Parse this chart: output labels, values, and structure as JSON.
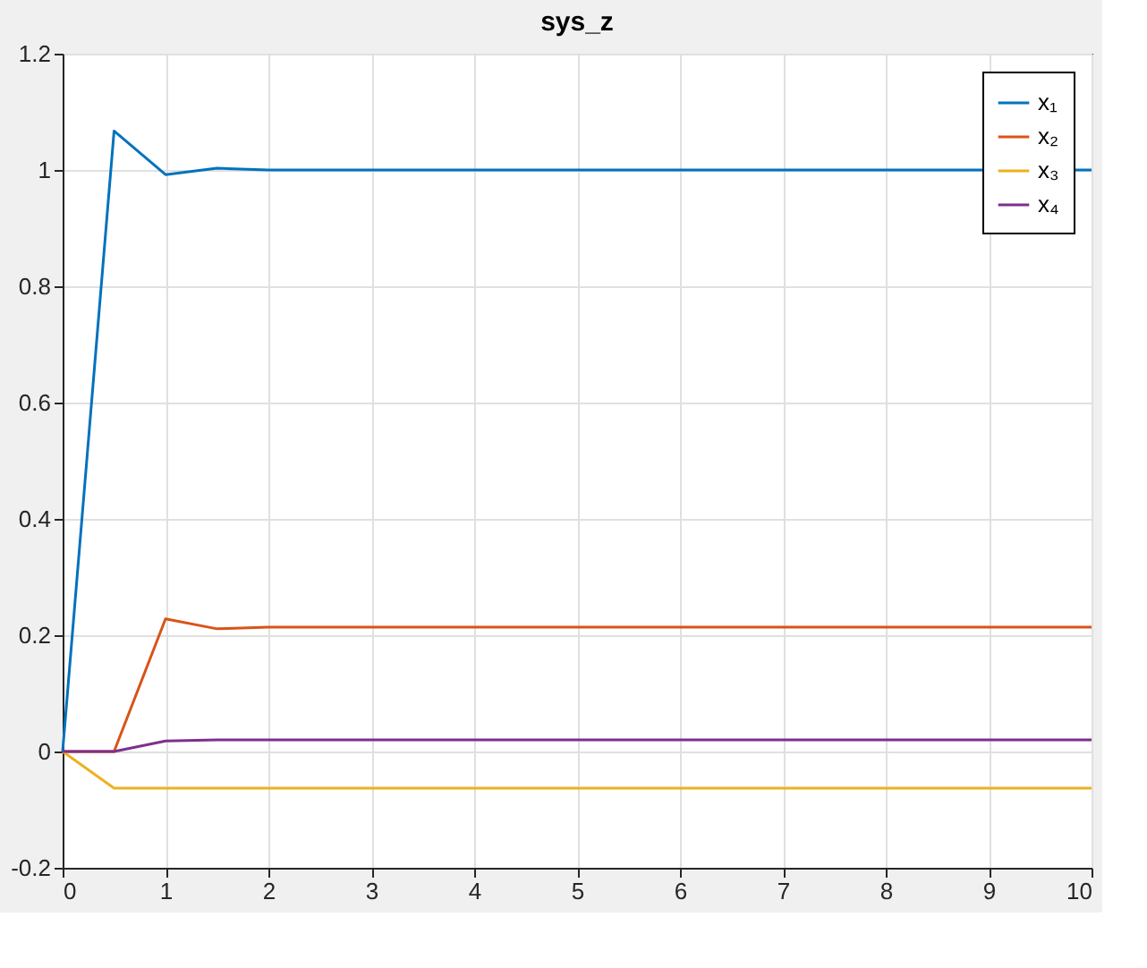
{
  "chart_data": {
    "type": "line",
    "title": "sys_z",
    "x": [
      0,
      0.5,
      1,
      1.5,
      2,
      10
    ],
    "series": [
      {
        "name": "x₁",
        "color": "#0072bd",
        "values": [
          0,
          1.067,
          0.992,
          1.003,
          1.0,
          1.0
        ]
      },
      {
        "name": "x₂",
        "color": "#d95319",
        "values": [
          0,
          0,
          0.228,
          0.211,
          0.214,
          0.214
        ]
      },
      {
        "name": "x₃",
        "color": "#edb120",
        "values": [
          0,
          -0.063,
          -0.063,
          -0.063,
          -0.063,
          -0.063
        ]
      },
      {
        "name": "x₄",
        "color": "#7e2f8e",
        "values": [
          0,
          0,
          0.018,
          0.02,
          0.02,
          0.02
        ]
      }
    ],
    "xlim": [
      0,
      10
    ],
    "xticks": [
      0,
      1,
      2,
      3,
      4,
      5,
      6,
      7,
      8,
      9,
      10
    ],
    "ylim": [
      -0.2,
      1.2
    ],
    "yticks": [
      -0.2,
      0,
      0.2,
      0.4,
      0.6,
      0.8,
      1,
      1.2
    ],
    "grid": true,
    "legend": "top right",
    "line_style": "solid",
    "marker": "none"
  }
}
